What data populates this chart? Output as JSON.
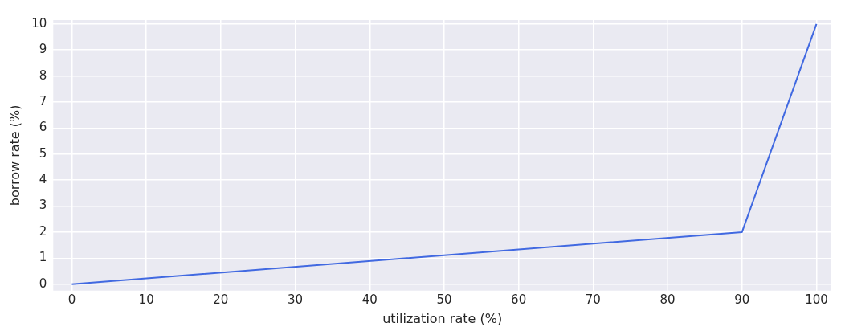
{
  "chart_data": {
    "type": "line",
    "xlabel": "utilization rate (%)",
    "ylabel": "borrow rate (%)",
    "x": [
      0,
      90,
      100
    ],
    "series": [
      {
        "color": "#4169e1",
        "values": [
          0,
          2,
          10
        ]
      }
    ],
    "xlim": [
      -2.5,
      102
    ],
    "ylim": [
      -0.25,
      10.15
    ],
    "xticks": [
      0,
      10,
      20,
      30,
      40,
      50,
      60,
      70,
      80,
      90,
      100
    ],
    "yticks": [
      0,
      1,
      2,
      3,
      4,
      5,
      6,
      7,
      8,
      9,
      10
    ],
    "grid": true,
    "legend": false,
    "marker": "none",
    "line_style": "solid"
  }
}
